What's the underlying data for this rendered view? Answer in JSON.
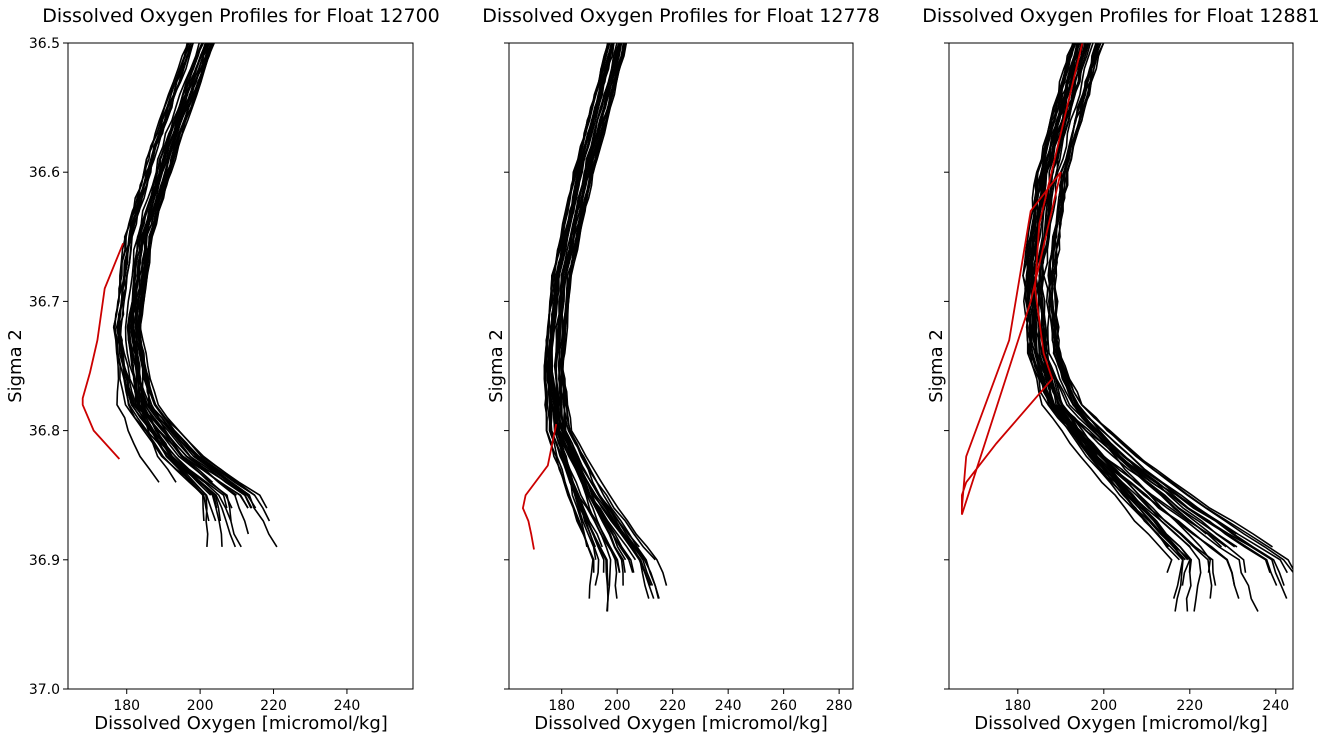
{
  "chart_data": [
    {
      "type": "line",
      "title": "Dissolved Oxygen Profiles for Float 12700",
      "xlabel": "Dissolved Oxygen [micromol/kg]",
      "ylabel": "Sigma 2",
      "xlim": [
        164,
        258
      ],
      "ylim": [
        37.0,
        36.5
      ],
      "y_inverted": true,
      "xticks": [
        180,
        200,
        220,
        240
      ],
      "yticks": [
        36.5,
        36.6,
        36.7,
        36.8,
        36.9,
        37.0
      ],
      "ytick_labels_shown": true,
      "grid": false,
      "colors": {
        "profiles": "#000000",
        "highlight": "#cc0000"
      },
      "highlight": {
        "x": [
          179,
          174,
          172,
          170,
          168,
          168,
          171,
          178
        ],
        "y": [
          36.655,
          36.69,
          36.73,
          36.755,
          36.775,
          36.78,
          36.8,
          36.822
        ]
      },
      "profiles": {
        "count": 32,
        "envelope": {
          "x": [
            200,
            190,
            183,
            180,
            182,
            190,
            200
          ],
          "y": [
            36.5,
            36.58,
            36.65,
            36.72,
            36.78,
            36.82,
            36.85
          ]
        },
        "anchor": {
          "x": [
            200,
            190,
            183,
            180,
            182,
            190,
            198
          ],
          "y": [
            36.5,
            36.58,
            36.65,
            36.72,
            36.78,
            36.82,
            36.845
          ]
        },
        "end_x": [
          206,
          206,
          198,
          197,
          194,
          190,
          186,
          185,
          184,
          183,
          181,
          180,
          179,
          178,
          186,
          193
        ]
      }
    },
    {
      "type": "line",
      "title": "Dissolved Oxygen Profiles for Float 12778",
      "xlabel": "Dissolved Oxygen [micromol/kg]",
      "ylabel": "Sigma 2",
      "xlim": [
        161,
        285
      ],
      "ylim": [
        37.0,
        36.5
      ],
      "y_inverted": true,
      "xticks": [
        180,
        200,
        220,
        240,
        260,
        280
      ],
      "yticks": [
        36.5,
        36.6,
        36.7,
        36.8,
        36.9,
        37.0
      ],
      "ytick_labels_shown": false,
      "grid": false,
      "colors": {
        "profiles": "#000000",
        "highlight": "#cc0000"
      },
      "highlight": {
        "x": [
          178,
          175,
          167,
          166,
          168,
          169,
          170
        ],
        "y": [
          36.795,
          36.827,
          36.85,
          36.86,
          36.87,
          36.88,
          36.892
        ]
      },
      "profiles": {
        "count": 32,
        "envelope": {
          "x": [
            200,
            188,
            180,
            177,
            178,
            186,
            196
          ],
          "y": [
            36.5,
            36.6,
            36.68,
            36.75,
            36.8,
            36.85,
            36.9
          ]
        },
        "anchor": {
          "x": [
            200,
            188,
            180,
            177,
            178,
            186,
            196
          ],
          "y": [
            36.5,
            36.6,
            36.68,
            36.75,
            36.8,
            36.85,
            36.9
          ]
        },
        "end_x": [
          208,
          207,
          202,
          198,
          197,
          194,
          190,
          186,
          184,
          182,
          190,
          200
        ]
      }
    },
    {
      "type": "line",
      "title": "Dissolved Oxygen Profiles for Float 12881",
      "xlabel": "Dissolved Oxygen [micromol/kg]",
      "ylabel": "Sigma 2",
      "xlim": [
        164,
        244
      ],
      "ylim": [
        37.0,
        36.5
      ],
      "y_inverted": true,
      "xticks": [
        180,
        200,
        220,
        240
      ],
      "yticks": [
        36.5,
        36.6,
        36.7,
        36.8,
        36.9,
        37.0
      ],
      "ytick_labels_shown": false,
      "grid": false,
      "colors": {
        "profiles": "#000000",
        "highlight": "#cc0000"
      },
      "highlight": {
        "x": [
          195,
          185,
          184,
          186,
          188,
          175,
          168,
          167,
          167,
          183,
          190,
          183,
          178,
          168,
          167,
          167
        ],
        "y": [
          36.5,
          36.64,
          36.69,
          36.74,
          36.76,
          36.81,
          36.84,
          36.85,
          36.865,
          36.7,
          36.6,
          36.63,
          36.73,
          36.82,
          36.86,
          36.865
        ]
      },
      "profiles": {
        "count": 36,
        "envelope": {
          "x": [
            196,
            188,
            185,
            186,
            190,
            200,
            212,
            225
          ],
          "y": [
            36.5,
            36.6,
            36.68,
            36.74,
            36.78,
            36.82,
            36.86,
            36.9
          ]
        },
        "anchor": {
          "x": [
            196,
            188,
            185,
            186,
            190,
            200,
            212,
            225
          ],
          "y": [
            36.5,
            36.6,
            36.68,
            36.74,
            36.78,
            36.82,
            36.86,
            36.9
          ]
        },
        "end_x": [
          236,
          233,
          230,
          228,
          225,
          222,
          218,
          214,
          210,
          207,
          204,
          202,
          200,
          233,
          231,
          226
        ]
      }
    }
  ]
}
